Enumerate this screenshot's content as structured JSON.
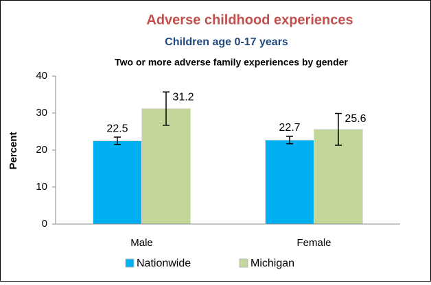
{
  "chart_data": {
    "type": "bar",
    "title": "Adverse childhood experiences",
    "subtitle": "Children  age 0-17 years",
    "chart_subtitle": "Two or more adverse family experiences by gender",
    "ylabel": "Percent",
    "categories": [
      "Male",
      "Female"
    ],
    "series": [
      {
        "name": "Nationwide",
        "color": "#00b0f0",
        "values": [
          22.5,
          22.7
        ],
        "errors": [
          1.0,
          1.0
        ]
      },
      {
        "name": "Michigan",
        "color": "#c4d79b",
        "values": [
          31.2,
          25.6
        ],
        "errors": [
          4.5,
          4.3
        ]
      }
    ],
    "ylim": [
      0,
      40
    ],
    "yticks": [
      0,
      10,
      20,
      30,
      40
    ],
    "grid": false,
    "legend": "bottom"
  }
}
